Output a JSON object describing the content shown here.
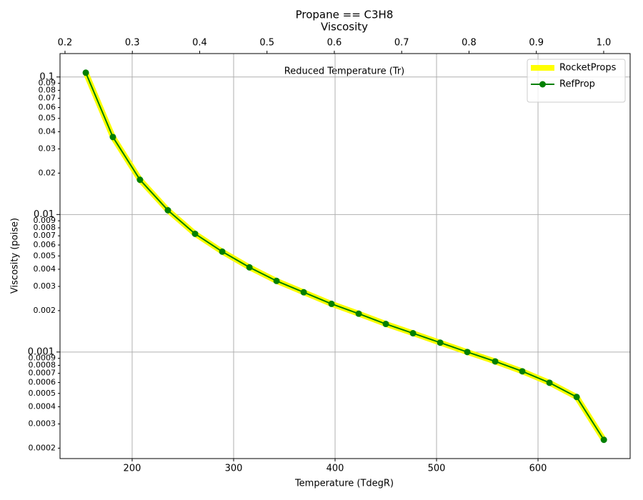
{
  "chart_data": {
    "type": "line",
    "title": "Propane == C3H8",
    "subtitle": "Viscosity",
    "xlabel": "Temperature (TdegR)",
    "ylabel": "Viscosity (poise)",
    "x2label": "Reduced Temperature (Tr)",
    "x": [
      154.3,
      181.0,
      207.7,
      235.2,
      262.0,
      288.8,
      315.6,
      342.3,
      369.1,
      396.5,
      423.3,
      450.0,
      476.8,
      503.6,
      530.3,
      557.8,
      584.5,
      611.3,
      638.1,
      664.9
    ],
    "series": [
      {
        "name": "RocketProps",
        "color": "#ffff00",
        "linewidth": 8,
        "marker": false,
        "values": [
          0.1074,
          0.0366,
          0.0179,
          0.01074,
          0.00724,
          0.00537,
          0.00413,
          0.00329,
          0.00272,
          0.00224,
          0.0019,
          0.0016,
          0.00137,
          0.00117,
          0.001,
          0.000855,
          0.000724,
          0.000598,
          0.000471,
          0.00023
        ]
      },
      {
        "name": "RefProp",
        "color": "#008000",
        "linewidth": 2,
        "marker": true,
        "values": [
          0.1074,
          0.0366,
          0.0179,
          0.01074,
          0.00724,
          0.00537,
          0.00413,
          0.00329,
          0.00272,
          0.00224,
          0.0019,
          0.0016,
          0.00137,
          0.00117,
          0.001,
          0.000855,
          0.000724,
          0.000598,
          0.000471,
          0.00023
        ]
      }
    ],
    "xlim": [
      128.9,
      690.8
    ],
    "xticks": [
      200,
      300,
      400,
      500,
      600
    ],
    "x2lim": [
      0.1926,
      1.0393
    ],
    "x2ticks": [
      0.2,
      0.3,
      0.4,
      0.5,
      0.6,
      0.7,
      0.8,
      0.9,
      {
        "value": 1,
        "label": "1.0"
      }
    ],
    "ylim": [
      0.000168,
      0.148
    ],
    "yscale": "log",
    "yticks": [
      0.1,
      0.01,
      0.001
    ],
    "yminorticks": [
      0.09,
      0.08,
      0.07,
      0.06,
      0.05,
      0.04,
      0.03,
      0.02,
      0.009,
      0.008,
      0.007,
      0.006,
      0.005,
      0.004,
      0.003,
      0.002,
      0.0009,
      0.0008,
      0.0007,
      0.0006,
      0.0005,
      0.0004,
      0.0003,
      0.0002
    ],
    "grid": true,
    "legend": "upper right"
  }
}
